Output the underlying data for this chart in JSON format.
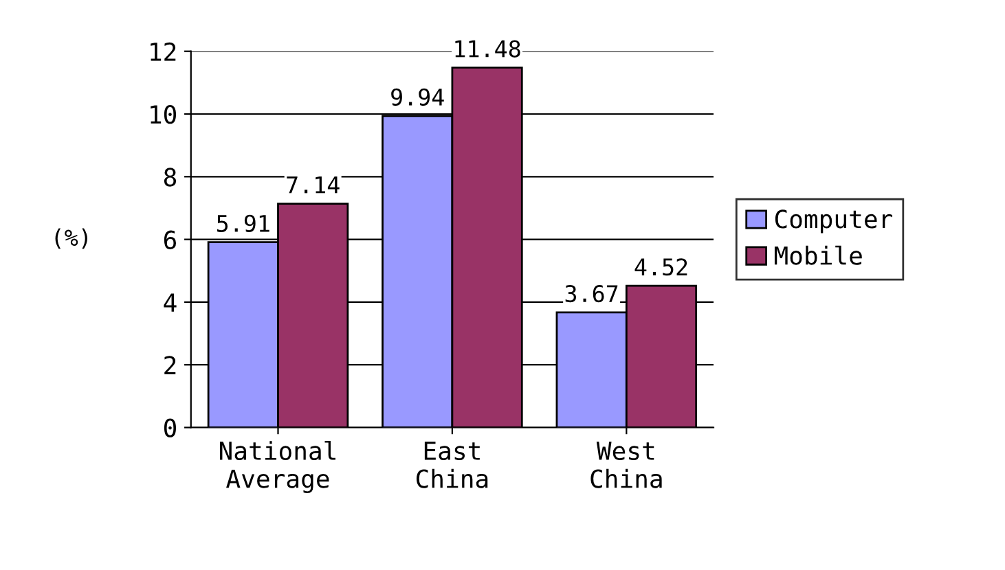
{
  "chart_data": {
    "type": "bar",
    "ylabel": "(%)",
    "categories": [
      "National\nAverage",
      "East\nChina",
      "West\nChina"
    ],
    "series": [
      {
        "name": "Computer",
        "color": "#9999ff",
        "values": [
          5.91,
          9.94,
          3.67
        ]
      },
      {
        "name": "Mobile",
        "color": "#993366",
        "values": [
          7.14,
          11.48,
          4.52
        ]
      }
    ],
    "ylim": [
      0,
      12
    ],
    "yticks": [
      0,
      2,
      4,
      6,
      8,
      10,
      12
    ],
    "grid": "y",
    "legend": "right",
    "data_labels": true
  }
}
